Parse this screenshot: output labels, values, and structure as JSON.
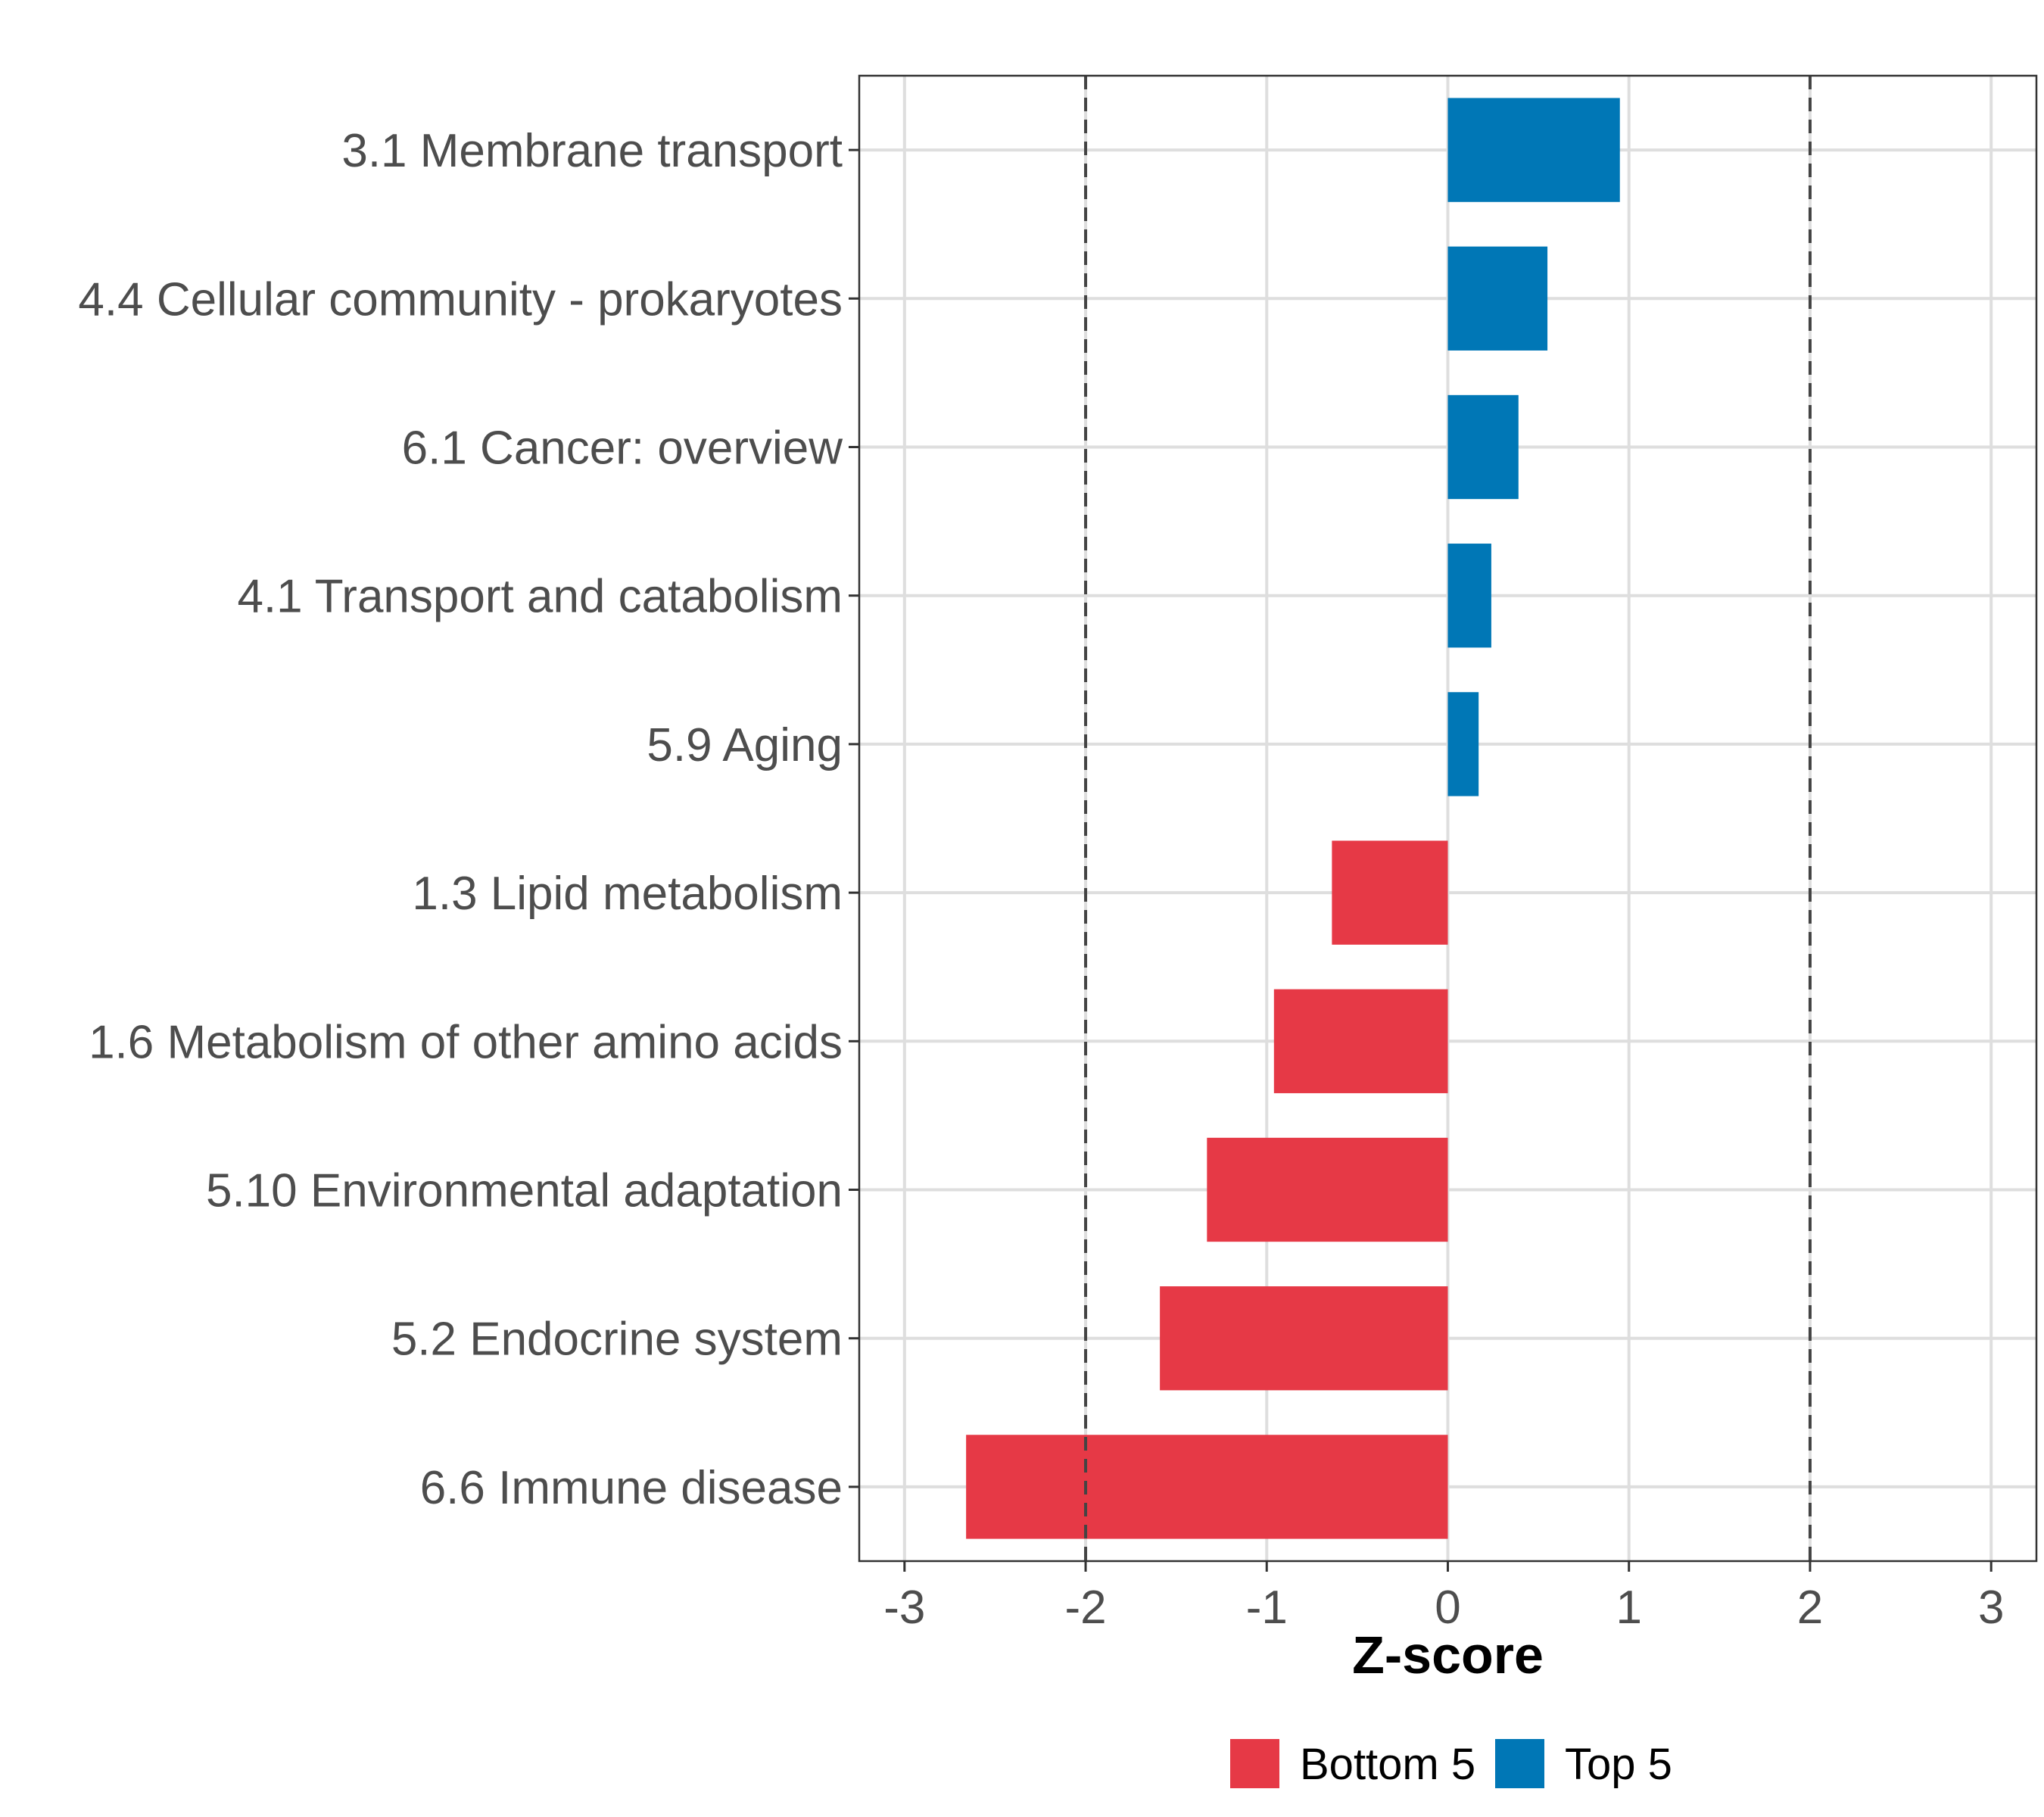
{
  "chart_data": {
    "type": "bar",
    "orientation": "horizontal",
    "title": "",
    "xlabel": "Z-score",
    "ylabel": "",
    "xlim": [
      -3.25,
      3.25
    ],
    "xticks": [
      -3,
      -2,
      -1,
      0,
      1,
      2,
      3
    ],
    "xtick_labels": [
      "-3",
      "-2",
      "-1",
      "0",
      "1",
      "2",
      "3"
    ],
    "reference_lines": [
      -2,
      2
    ],
    "grid": true,
    "legend_position": "bottom",
    "categories": [
      "3.1 Membrane transport",
      "4.4 Cellular community - prokaryotes",
      "6.1 Cancer: overview",
      "4.1 Transport and catabolism",
      "5.9 Aging",
      "1.3 Lipid metabolism",
      "1.6 Metabolism of other amino acids",
      "5.10 Environmental adaptation",
      "5.2 Endocrine system",
      "6.6 Immune disease"
    ],
    "values": [
      0.95,
      0.55,
      0.39,
      0.24,
      0.17,
      -0.64,
      -0.96,
      -1.33,
      -1.59,
      -2.66
    ],
    "groups": [
      "Top 5",
      "Top 5",
      "Top 5",
      "Top 5",
      "Top 5",
      "Bottom 5",
      "Bottom 5",
      "Bottom 5",
      "Bottom 5",
      "Bottom 5"
    ],
    "legend": [
      {
        "name": "Bottom 5",
        "color": "#e63946"
      },
      {
        "name": "Top 5",
        "color": "#0077b6"
      }
    ]
  }
}
